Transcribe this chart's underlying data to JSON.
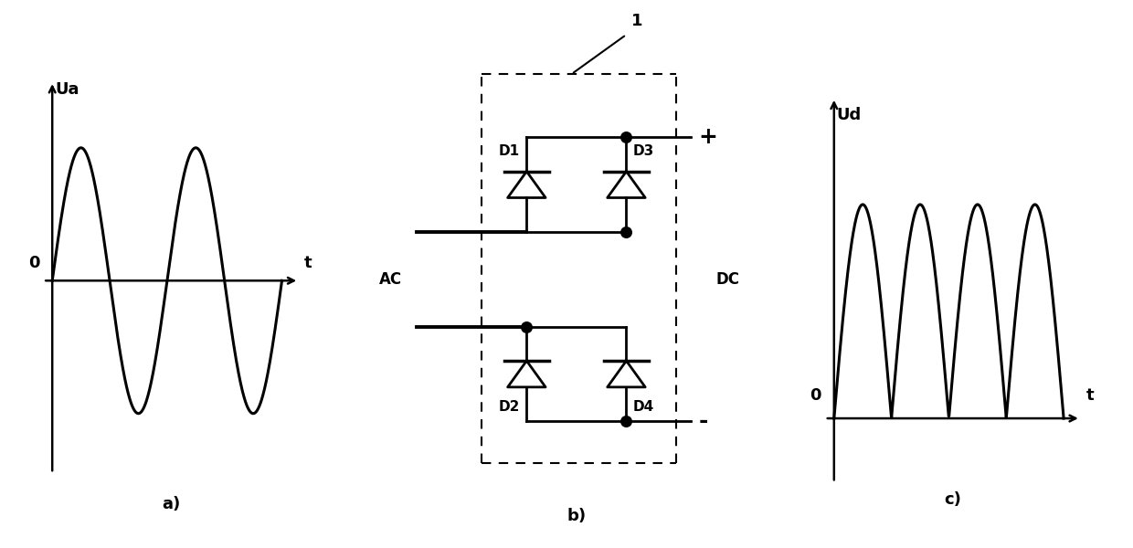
{
  "bg_color": "#ffffff",
  "line_color": "#000000",
  "fig_width": 12.4,
  "fig_height": 6.0,
  "label_a": "a)",
  "label_b": "b)",
  "label_c": "c)",
  "label_Ua": "Ua",
  "label_t_a": "t",
  "label_0_a": "0",
  "label_Ud": "Ud",
  "label_t_c": "t",
  "label_0_c": "0",
  "label_AC": "AC",
  "label_DC": "DC",
  "label_plus": "+",
  "label_minus": "-",
  "label_1": "1",
  "label_D1": "D1",
  "label_D2": "D2",
  "label_D3": "D3",
  "label_D4": "D4"
}
